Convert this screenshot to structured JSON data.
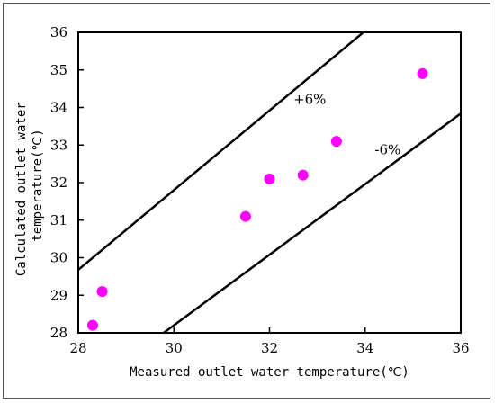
{
  "chart_data": {
    "type": "scatter",
    "xlabel": "Measured outlet water temperature(℃)",
    "ylabel_lines": [
      "Calculated outlet water",
      "temperature(℃)"
    ],
    "xlim": [
      28,
      36
    ],
    "ylim": [
      28,
      36
    ],
    "x_ticks": [
      28,
      30,
      32,
      34,
      36
    ],
    "y_ticks": [
      28,
      29,
      30,
      31,
      32,
      33,
      34,
      35,
      36
    ],
    "points": [
      {
        "x": 28.3,
        "y": 28.2
      },
      {
        "x": 28.5,
        "y": 29.1
      },
      {
        "x": 31.5,
        "y": 31.1
      },
      {
        "x": 32.0,
        "y": 32.1
      },
      {
        "x": 32.7,
        "y": 32.2
      },
      {
        "x": 33.4,
        "y": 33.1
      },
      {
        "x": 35.2,
        "y": 34.9
      }
    ],
    "bounds": [
      {
        "label": "+6%",
        "factor": 1.06
      },
      {
        "label": "-6%",
        "factor": 0.94
      }
    ],
    "marker_color": "#ff00ff",
    "line_color": "#000000",
    "grid": false,
    "legend": "none"
  }
}
